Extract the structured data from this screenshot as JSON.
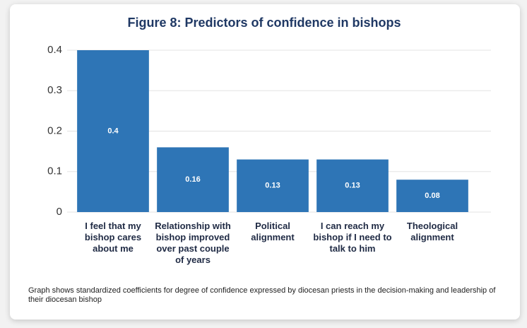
{
  "chart_data": {
    "type": "bar",
    "title": "Figure 8:  Predictors of confidence in bishops",
    "categories": [
      "I feel that my bishop cares about me",
      "Relationship with bishop improved over past couple of years",
      "Political alignment",
      "I can reach my bishop if I need to talk to him",
      "Theological alignment"
    ],
    "values": [
      0.4,
      0.16,
      0.13,
      0.13,
      0.08
    ],
    "color": "#2e75b6",
    "ylim": [
      0,
      0.4
    ],
    "yticks": [
      0,
      0.1,
      0.2,
      0.3,
      0.4
    ],
    "grid": true,
    "note": "Graph shows standardized coefficients for degree of confidence expressed by diocesan priests in the decision-making and leadership of their diocesan bishop"
  }
}
